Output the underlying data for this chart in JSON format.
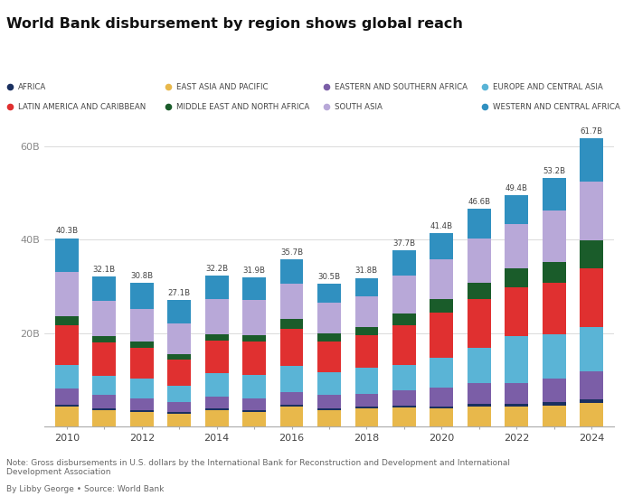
{
  "title": "World Bank disbursement by region shows global reach",
  "years": [
    2010,
    2011,
    2012,
    2013,
    2014,
    2015,
    2016,
    2017,
    2018,
    2019,
    2020,
    2021,
    2022,
    2023,
    2024
  ],
  "totals": [
    40.3,
    32.1,
    30.8,
    27.1,
    32.2,
    31.9,
    35.7,
    30.5,
    31.8,
    37.7,
    41.4,
    46.6,
    49.4,
    53.2,
    61.7
  ],
  "colors": {
    "EAST ASIA AND PACIFIC": "#e8b84b",
    "AFRICA": "#1a3060",
    "EASTERN AND SOUTHERN AFRICA": "#7b5ea7",
    "EUROPE AND CENTRAL ASIA": "#5ab4d6",
    "LATIN AMERICA AND CARIBBEAN": "#e03030",
    "MIDDLE EAST AND NORTH AFRICA": "#1a5c2a",
    "SOUTH ASIA": "#b8a8d8",
    "WESTERN AND CENTRAL AFRICA": "#3090c0"
  },
  "stack_order": [
    "EAST ASIA AND PACIFIC",
    "AFRICA",
    "EASTERN AND SOUTHERN AFRICA",
    "EUROPE AND CENTRAL ASIA",
    "LATIN AMERICA AND CARIBBEAN",
    "MIDDLE EAST AND NORTH AFRICA",
    "SOUTH ASIA",
    "WESTERN AND CENTRAL AFRICA"
  ],
  "data": {
    "EAST ASIA AND PACIFIC": [
      4.2,
      3.5,
      3.2,
      2.8,
      3.5,
      3.2,
      4.2,
      3.5,
      3.8,
      4.0,
      3.8,
      4.2,
      4.2,
      4.5,
      5.0
    ],
    "AFRICA": [
      0.5,
      0.4,
      0.4,
      0.3,
      0.4,
      0.4,
      0.4,
      0.4,
      0.4,
      0.5,
      0.5,
      0.6,
      0.6,
      0.7,
      0.8
    ],
    "EASTERN AND SOUTHERN AFRICA": [
      3.5,
      2.8,
      2.5,
      2.2,
      2.5,
      2.5,
      2.8,
      2.8,
      2.8,
      3.2,
      4.0,
      4.5,
      4.5,
      5.0,
      6.0
    ],
    "EUROPE AND CENTRAL ASIA": [
      5.0,
      4.2,
      4.2,
      3.5,
      5.0,
      5.0,
      5.5,
      5.0,
      5.5,
      5.5,
      6.5,
      7.5,
      10.0,
      9.5,
      9.5
    ],
    "LATIN AMERICA AND CARIBBEAN": [
      8.5,
      7.0,
      6.5,
      5.5,
      7.0,
      7.0,
      8.0,
      6.5,
      7.0,
      8.5,
      9.5,
      10.5,
      10.5,
      11.0,
      12.5
    ],
    "MIDDLE EAST AND NORTH AFRICA": [
      1.8,
      1.4,
      1.4,
      1.2,
      1.4,
      1.4,
      2.2,
      1.8,
      1.8,
      2.5,
      3.0,
      3.5,
      4.0,
      4.5,
      6.0
    ],
    "SOUTH ASIA": [
      9.5,
      7.5,
      7.0,
      6.5,
      7.5,
      7.5,
      7.5,
      6.5,
      6.5,
      8.0,
      8.5,
      9.5,
      9.5,
      11.0,
      12.5
    ],
    "WESTERN AND CENTRAL AFRICA": [
      7.3,
      5.3,
      5.6,
      5.1,
      4.9,
      4.9,
      5.1,
      4.0,
      4.0,
      5.5,
      5.6,
      6.3,
      6.1,
      7.0,
      9.4
    ]
  },
  "legend_order": [
    "AFRICA",
    "EAST ASIA AND PACIFIC",
    "EASTERN AND SOUTHERN AFRICA",
    "EUROPE AND CENTRAL ASIA",
    "LATIN AMERICA AND CARIBBEAN",
    "MIDDLE EAST AND NORTH AFRICA",
    "SOUTH ASIA",
    "WESTERN AND CENTRAL AFRICA"
  ],
  "note": "Note: Gross disbursements in U.S. dollars by the International Bank for Reconstruction and Development and International\nDevelopment Association",
  "source": "By Libby George • Source: World Bank",
  "background_color": "#ffffff",
  "ylim": [
    0,
    70
  ],
  "yticks": [
    20,
    40,
    60
  ],
  "ytick_labels": [
    "20B",
    "40B",
    "60B"
  ]
}
